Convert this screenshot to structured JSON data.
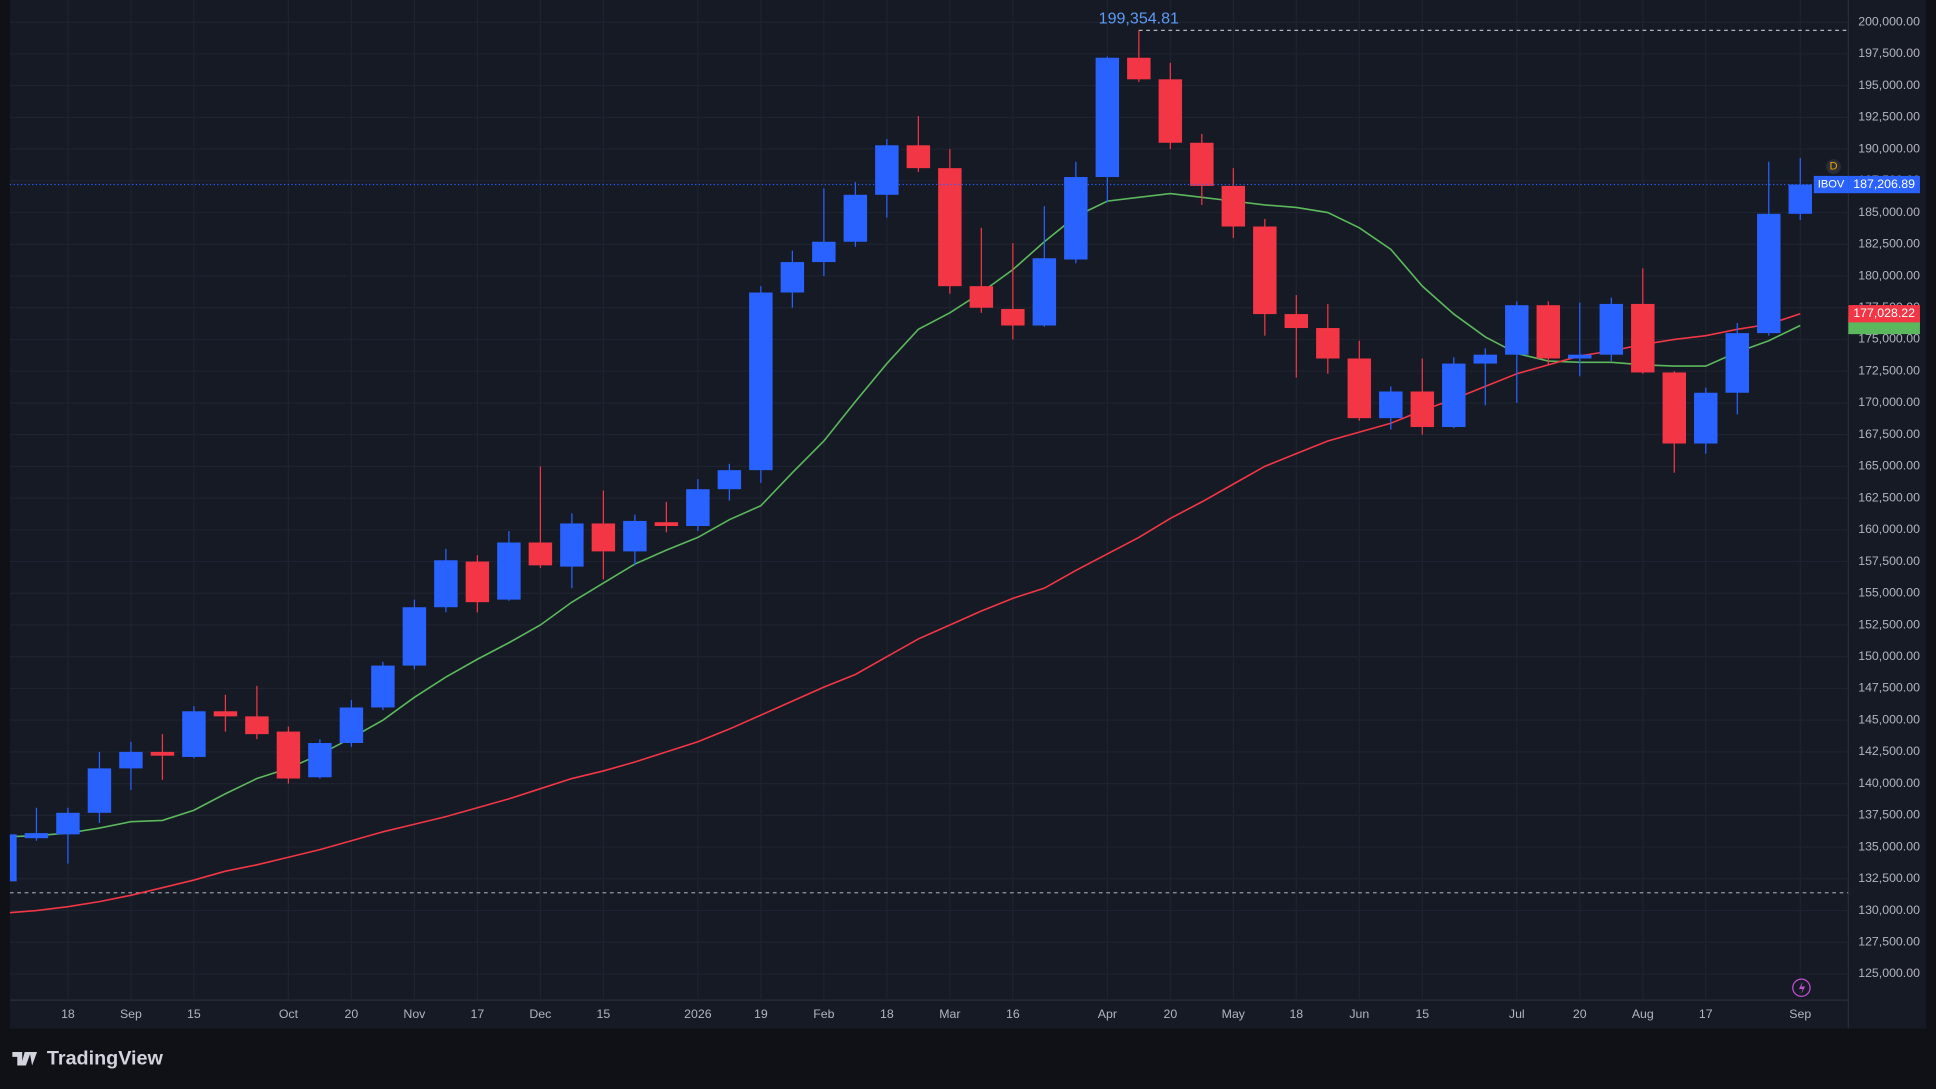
{
  "chart_data": {
    "type": "candlestick",
    "symbol": "IBOV",
    "categories": [
      null,
      null,
      "18",
      null,
      "Sep",
      null,
      "15",
      null,
      null,
      "Oct",
      null,
      "20",
      null,
      "Nov",
      null,
      "17",
      null,
      "Dec",
      null,
      "15",
      null,
      null,
      "2026",
      null,
      "19",
      null,
      "Feb",
      null,
      "18",
      null,
      "Mar",
      null,
      "16",
      null,
      null,
      "Apr",
      null,
      "20",
      null,
      "May",
      null,
      "18",
      null,
      "Jun",
      null,
      "15",
      null,
      null,
      "Jul",
      null,
      "20",
      null,
      "Aug",
      null,
      "17",
      null,
      null,
      "Sep"
    ],
    "candles": {
      "up_color": "#2962ff",
      "down_color": "#f23645",
      "open": [
        132300,
        135700,
        136000,
        137700,
        141200,
        142500,
        142100,
        145700,
        145300,
        144100,
        140500,
        143200,
        146000,
        149300,
        153900,
        157500,
        154500,
        159000,
        157100,
        160500,
        158300,
        160600,
        160300,
        163200,
        164700,
        178700,
        181100,
        182700,
        186400,
        190300,
        188500,
        179200,
        177400,
        176100,
        181300,
        187800,
        197200,
        195500,
        190500,
        187100,
        183900,
        177000,
        175900,
        173500,
        168800,
        170900,
        168100,
        173100,
        173800,
        177700,
        173500,
        173800,
        177800,
        172400,
        166800,
        170800,
        175500,
        184900
      ],
      "high": [
        136200,
        138100,
        138100,
        142500,
        143300,
        143900,
        146100,
        147000,
        147700,
        144500,
        143500,
        146600,
        149600,
        154500,
        158500,
        158000,
        159900,
        165000,
        161300,
        163100,
        161200,
        162200,
        164000,
        165200,
        179200,
        182000,
        186900,
        187400,
        190800,
        192600,
        190000,
        183800,
        182600,
        185500,
        189000,
        197300,
        199354.81,
        196800,
        191200,
        188500,
        184500,
        178500,
        177800,
        174900,
        171300,
        173500,
        173600,
        174300,
        178000,
        178000,
        177900,
        178300,
        180600,
        172500,
        171200,
        176300,
        189000,
        189300
      ],
      "low": [
        132000,
        135500,
        133700,
        136900,
        139500,
        140300,
        142000,
        144100,
        143500,
        140000,
        140400,
        142900,
        145800,
        149000,
        153500,
        153500,
        154400,
        157000,
        155400,
        156100,
        157200,
        159800,
        159900,
        162300,
        163700,
        177500,
        180000,
        182300,
        184600,
        188200,
        178600,
        177100,
        175000,
        176000,
        181000,
        185800,
        195300,
        190000,
        185600,
        183000,
        175300,
        172000,
        172300,
        168600,
        167900,
        167500,
        168000,
        169800,
        170000,
        173000,
        172100,
        173300,
        172300,
        164500,
        166000,
        169100,
        175300,
        184400
      ],
      "close": [
        136000,
        136100,
        137700,
        141200,
        142500,
        142200,
        145700,
        145300,
        143900,
        140400,
        143200,
        146000,
        149300,
        153900,
        157600,
        154300,
        159000,
        157200,
        160500,
        158300,
        160700,
        160300,
        163200,
        164700,
        178700,
        181100,
        182700,
        186400,
        190300,
        188500,
        179200,
        177500,
        176100,
        181400,
        187800,
        197200,
        195500,
        190500,
        187100,
        183900,
        177000,
        175900,
        173500,
        168800,
        170900,
        168100,
        173100,
        173800,
        177700,
        173500,
        173800,
        177800,
        172400,
        166800,
        170800,
        175500,
        184900,
        187206.89
      ]
    },
    "lines": [
      {
        "color": "#5cb85c",
        "values": [
          135800,
          135900,
          136100,
          136500,
          137000,
          137100,
          137900,
          139200,
          140400,
          141200,
          142300,
          143600,
          145000,
          146800,
          148400,
          149800,
          151100,
          152500,
          154300,
          155800,
          157300,
          158400,
          159400,
          160800,
          161900,
          164500,
          167000,
          170100,
          173100,
          175800,
          177100,
          178700,
          180500,
          182700,
          184700,
          185900,
          186200,
          186500,
          186200,
          185900,
          185600,
          185400,
          185000,
          183800,
          182100,
          179200,
          177000,
          175200,
          173900,
          173300,
          173200,
          173200,
          173000,
          172900,
          172900,
          174000,
          174900,
          176100
        ]
      },
      {
        "color": "#f23645",
        "values": [
          129800,
          130000,
          130300,
          130700,
          131200,
          131800,
          132400,
          133100,
          133600,
          134200,
          134800,
          135500,
          136200,
          136800,
          137400,
          138100,
          138800,
          139600,
          140400,
          141000,
          141700,
          142500,
          143300,
          144300,
          145400,
          146500,
          147600,
          148600,
          150000,
          151400,
          152500,
          153600,
          154600,
          155400,
          156800,
          158100,
          159400,
          160900,
          162200,
          163600,
          165000,
          166000,
          167000,
          167700,
          168400,
          169400,
          170300,
          171300,
          172300,
          173000,
          173700,
          174100,
          174600,
          175000,
          175300,
          175800,
          176200,
          177028.22
        ]
      }
    ],
    "max_label": "199,354.81",
    "last_label": "187,206.89",
    "ma_label": "177,028.22",
    "reference_line": 131400,
    "ylim": [
      120800,
      201750
    ],
    "yticks": [
      {
        "value": 125000,
        "label": "125,000.00"
      },
      {
        "value": 127500,
        "label": "127,500.00"
      },
      {
        "value": 130000,
        "label": "130,000.00"
      },
      {
        "value": 132500,
        "label": "132,500.00"
      },
      {
        "value": 135000,
        "label": "135,000.00"
      },
      {
        "value": 137500,
        "label": "137,500.00"
      },
      {
        "value": 140000,
        "label": "140,000.00"
      },
      {
        "value": 142500,
        "label": "142,500.00"
      },
      {
        "value": 145000,
        "label": "145,000.00"
      },
      {
        "value": 147500,
        "label": "147,500.00"
      },
      {
        "value": 150000,
        "label": "150,000.00"
      },
      {
        "value": 152500,
        "label": "152,500.00"
      },
      {
        "value": 155000,
        "label": "155,000.00"
      },
      {
        "value": 157500,
        "label": "157,500.00"
      },
      {
        "value": 160000,
        "label": "160,000.00"
      },
      {
        "value": 162500,
        "label": "162,500.00"
      },
      {
        "value": 165000,
        "label": "165,000.00"
      },
      {
        "value": 167500,
        "label": "167,500.00"
      },
      {
        "value": 170000,
        "label": "170,000.00"
      },
      {
        "value": 172500,
        "label": "172,500.00"
      },
      {
        "value": 175000,
        "label": "175,000.00"
      },
      {
        "value": 177500,
        "label": "177,500.00"
      },
      {
        "value": 180000,
        "label": "180,000.00"
      },
      {
        "value": 182500,
        "label": "182,500.00"
      },
      {
        "value": 185000,
        "label": "185,000.00"
      },
      {
        "value": 187500,
        "label": "187,500.00"
      },
      {
        "value": 190000,
        "label": "190,000.00"
      },
      {
        "value": 192500,
        "label": "192,500.00"
      },
      {
        "value": 195000,
        "label": "195,000.00"
      },
      {
        "value": 197500,
        "label": "197,500.00"
      },
      {
        "value": 200000,
        "label": "200,000.00"
      }
    ],
    "grid": true
  },
  "brand": "TradingView",
  "interval": "D"
}
